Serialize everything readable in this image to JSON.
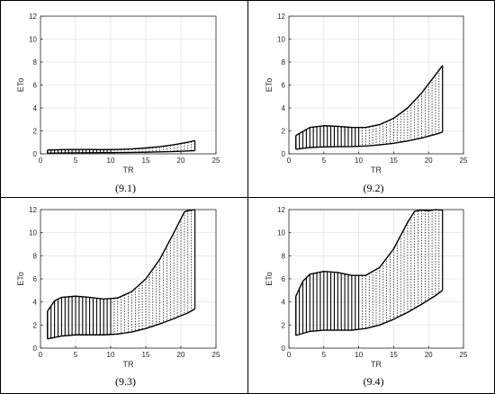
{
  "chart_data": [
    {
      "type": "area",
      "caption": "(9.1)",
      "xlabel": "TR",
      "ylabel": "ETo",
      "xlim": [
        0,
        25
      ],
      "ylim": [
        0,
        12
      ],
      "xticks": [
        "0",
        "5",
        "10",
        "15",
        "20",
        "25"
      ],
      "yticks": [
        "0",
        "2",
        "4",
        "6",
        "8",
        "10",
        "12"
      ],
      "grid": true,
      "series": [
        {
          "bound": "upper",
          "x": [
            1,
            3,
            5,
            7,
            9,
            11,
            13,
            15,
            17,
            19,
            21,
            22
          ],
          "y": [
            0.33,
            0.37,
            0.38,
            0.38,
            0.37,
            0.38,
            0.43,
            0.51,
            0.62,
            0.79,
            1.01,
            1.15
          ]
        },
        {
          "bound": "lower",
          "x": [
            1,
            3,
            5,
            7,
            9,
            11,
            13,
            15,
            17,
            19,
            21,
            22
          ],
          "y": [
            0.05,
            0.07,
            0.08,
            0.09,
            0.1,
            0.11,
            0.12,
            0.14,
            0.17,
            0.2,
            0.25,
            0.28
          ]
        }
      ]
    },
    {
      "type": "area",
      "caption": "(9.2)",
      "xlabel": "TR",
      "ylabel": "ETo",
      "xlim": [
        0,
        25
      ],
      "ylim": [
        0,
        12
      ],
      "xticks": [
        "0",
        "5",
        "10",
        "15",
        "20",
        "25"
      ],
      "yticks": [
        "0",
        "2",
        "4",
        "6",
        "8",
        "10",
        "12"
      ],
      "grid": true,
      "series": [
        {
          "bound": "upper",
          "x": [
            1,
            3,
            5,
            7,
            9,
            11,
            13,
            15,
            17,
            19,
            21,
            22
          ],
          "y": [
            1.6,
            2.3,
            2.45,
            2.4,
            2.3,
            2.3,
            2.55,
            3.1,
            4.0,
            5.3,
            6.9,
            7.7
          ]
        },
        {
          "bound": "lower",
          "x": [
            1,
            3,
            5,
            7,
            9,
            11,
            13,
            15,
            17,
            19,
            21,
            22
          ],
          "y": [
            0.4,
            0.55,
            0.6,
            0.62,
            0.63,
            0.68,
            0.78,
            0.92,
            1.12,
            1.38,
            1.7,
            1.9
          ]
        }
      ]
    },
    {
      "type": "area",
      "caption": "(9.3)",
      "xlabel": "TR",
      "ylabel": "ETo",
      "xlim": [
        0,
        25
      ],
      "ylim": [
        0,
        12
      ],
      "xticks": [
        "0",
        "5",
        "10",
        "15",
        "20",
        "25"
      ],
      "yticks": [
        "0",
        "2",
        "4",
        "6",
        "8",
        "10",
        "12"
      ],
      "grid": true,
      "series": [
        {
          "bound": "upper",
          "x": [
            1,
            2,
            3,
            5,
            7,
            9,
            11,
            13,
            15,
            17,
            19,
            20.5,
            21,
            22
          ],
          "y": [
            3.2,
            4.1,
            4.4,
            4.5,
            4.4,
            4.25,
            4.35,
            4.9,
            6.0,
            7.7,
            10.0,
            11.8,
            11.9,
            12.0
          ]
        },
        {
          "bound": "lower",
          "x": [
            1,
            3,
            5,
            7,
            9,
            11,
            13,
            15,
            17,
            19,
            21,
            22
          ],
          "y": [
            0.8,
            1.05,
            1.15,
            1.15,
            1.15,
            1.22,
            1.4,
            1.7,
            2.1,
            2.55,
            3.05,
            3.4
          ]
        }
      ]
    },
    {
      "type": "area",
      "caption": "(9.4)",
      "xlabel": "TR",
      "ylabel": "ETo",
      "xlim": [
        0,
        25
      ],
      "ylim": [
        0,
        12
      ],
      "xticks": [
        "0",
        "5",
        "10",
        "15",
        "20",
        "25"
      ],
      "yticks": [
        "0",
        "2",
        "4",
        "6",
        "8",
        "10",
        "12"
      ],
      "grid": true,
      "series": [
        {
          "bound": "upper",
          "x": [
            1,
            2,
            3,
            5,
            7,
            9,
            11,
            13,
            15,
            17,
            18,
            19,
            20,
            21,
            22
          ],
          "y": [
            4.5,
            5.8,
            6.4,
            6.65,
            6.55,
            6.3,
            6.3,
            7.0,
            8.6,
            10.9,
            11.85,
            11.95,
            11.9,
            12.0,
            11.95
          ]
        },
        {
          "bound": "lower",
          "x": [
            1,
            3,
            5,
            7,
            9,
            11,
            13,
            15,
            17,
            19,
            21,
            22
          ],
          "y": [
            1.1,
            1.45,
            1.55,
            1.55,
            1.55,
            1.7,
            2.0,
            2.5,
            3.1,
            3.8,
            4.55,
            5.0
          ]
        }
      ]
    }
  ]
}
